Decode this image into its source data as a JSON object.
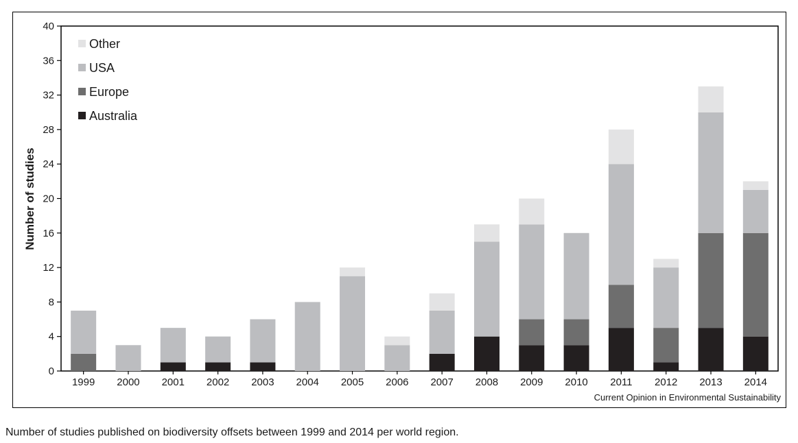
{
  "chart_data": {
    "type": "bar",
    "stacked": true,
    "ylabel": "Number of studies",
    "xlabel": "",
    "ylim": [
      0,
      40
    ],
    "yticks": [
      0,
      4,
      8,
      12,
      16,
      20,
      24,
      28,
      32,
      36,
      40
    ],
    "categories": [
      "1999",
      "2000",
      "2001",
      "2002",
      "2003",
      "2004",
      "2005",
      "2006",
      "2007",
      "2008",
      "2009",
      "2010",
      "2011",
      "2012",
      "2013",
      "2014"
    ],
    "series": [
      {
        "name": "Australia",
        "color": "#231f20",
        "values": [
          0,
          0,
          1,
          1,
          1,
          0,
          0,
          0,
          2,
          4,
          3,
          3,
          5,
          1,
          5,
          4
        ]
      },
      {
        "name": "Europe",
        "color": "#6e6e6e",
        "values": [
          2,
          0,
          0,
          0,
          0,
          0,
          0,
          0,
          0,
          0,
          3,
          3,
          5,
          4,
          11,
          12
        ]
      },
      {
        "name": "USA",
        "color": "#bcbdc0",
        "values": [
          5,
          3,
          4,
          3,
          5,
          8,
          11,
          3,
          5,
          11,
          11,
          10,
          14,
          7,
          14,
          5
        ]
      },
      {
        "name": "Other",
        "color": "#e3e3e4",
        "values": [
          0,
          0,
          0,
          0,
          0,
          0,
          1,
          1,
          2,
          2,
          3,
          0,
          4,
          1,
          3,
          1
        ]
      }
    ],
    "legend_order": [
      "Other",
      "USA",
      "Europe",
      "Australia"
    ],
    "legend_position": "top-left",
    "grid": false
  },
  "source": "Current Opinion in Environmental Sustainability",
  "caption": "Number of studies published on biodiversity offsets between 1999 and 2014 per world region."
}
